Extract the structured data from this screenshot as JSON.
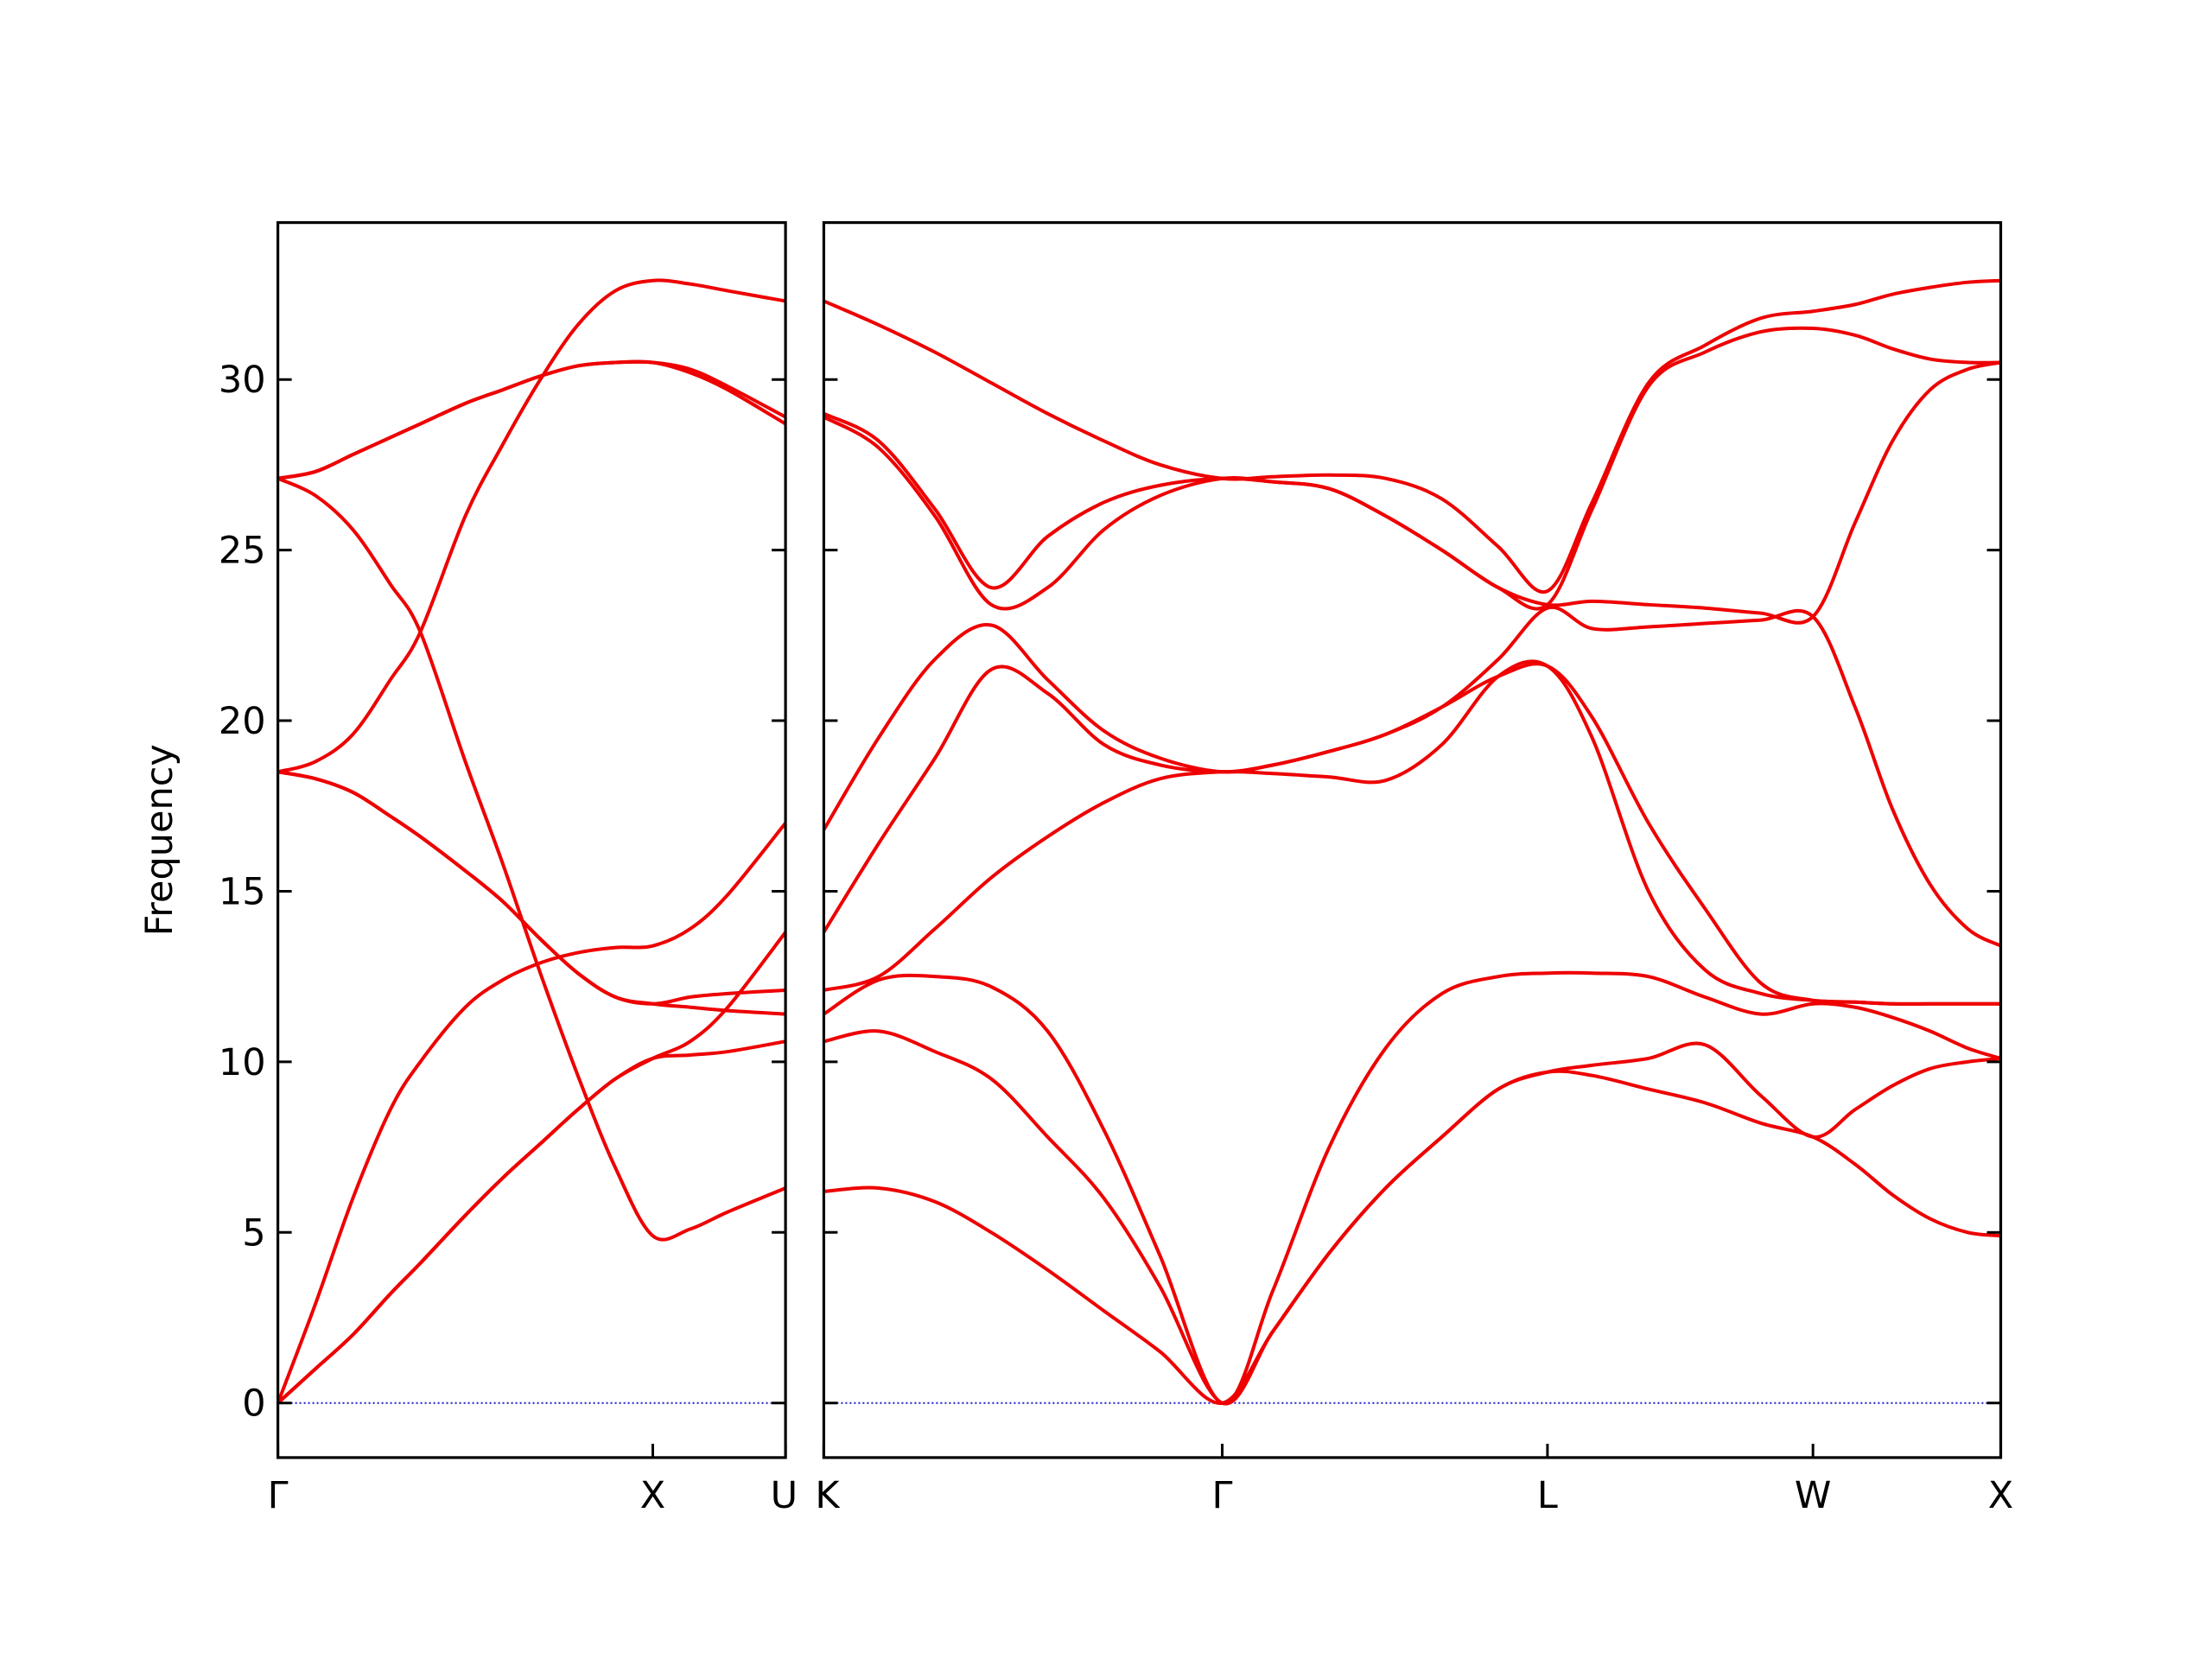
{
  "chart_data": [
    {
      "type": "line",
      "ylabel": "Frequency",
      "x": [
        0,
        0.1,
        0.2,
        0.3,
        0.38,
        0.5,
        0.6,
        0.7,
        0.8,
        0.9,
        1.0,
        1.1,
        1.2,
        1.354
      ],
      "series": [
        {
          "color": "#ee0000",
          "values": [
            0,
            1.0,
            2.0,
            3.2,
            4.1,
            5.5,
            6.6,
            7.6,
            8.6,
            9.5,
            10.1,
            10.2,
            10.3,
            10.6
          ]
        },
        {
          "color": "#ee0000",
          "values": [
            0,
            1.0,
            2.0,
            3.2,
            4.1,
            5.5,
            6.6,
            7.6,
            8.6,
            9.5,
            10.1,
            10.6,
            11.6,
            13.8
          ]
        },
        {
          "color": "#ee0000",
          "values": [
            0,
            2.9,
            6.0,
            8.6,
            10.0,
            11.6,
            12.4,
            12.9,
            13.2,
            13.35,
            13.4,
            13.9,
            14.9,
            17.0
          ]
        },
        {
          "color": "#ee0000",
          "values": [
            18.5,
            18.3,
            17.9,
            17.2,
            16.6,
            15.6,
            14.7,
            13.6,
            12.6,
            11.9,
            11.7,
            11.9,
            12.0,
            12.1
          ]
        },
        {
          "color": "#ee0000",
          "values": [
            18.5,
            18.3,
            17.9,
            17.2,
            16.6,
            15.6,
            14.7,
            13.6,
            12.6,
            11.9,
            11.7,
            11.6,
            11.5,
            11.4
          ]
        },
        {
          "color": "#ee0000",
          "values": [
            18.5,
            18.8,
            19.6,
            21.2,
            22.6,
            26.0,
            28.1,
            30.0,
            31.6,
            32.6,
            32.9,
            32.8,
            32.6,
            32.3
          ]
        },
        {
          "color": "#ee0000",
          "values": [
            27.1,
            27.3,
            27.8,
            28.3,
            28.7,
            29.3,
            29.7,
            30.1,
            30.4,
            30.5,
            30.5,
            30.3,
            29.8,
            28.9
          ]
        },
        {
          "color": "#ee0000",
          "values": [
            27.1,
            27.3,
            27.8,
            28.3,
            28.7,
            29.3,
            29.7,
            30.1,
            30.4,
            30.5,
            30.5,
            30.2,
            29.7,
            28.7
          ]
        },
        {
          "color": "#ee0000",
          "values": [
            27.1,
            26.6,
            25.6,
            24.0,
            22.6,
            18.8,
            15.8,
            12.6,
            9.6,
            6.9,
            4.9,
            5.1,
            5.6,
            6.3
          ]
        }
      ],
      "xlim": [
        0,
        1.354
      ],
      "xticks": [
        {
          "value": 0,
          "label": "Γ"
        },
        {
          "value": 1.0,
          "label": "X"
        },
        {
          "value": 1.354,
          "label": "U"
        }
      ],
      "ylim": [
        -1.6,
        34.6
      ],
      "yticks": [
        0,
        5,
        10,
        15,
        20,
        25,
        30
      ],
      "ytick_labels": true,
      "zero_line": {
        "value": 0,
        "color": "#1c1cc8"
      }
    },
    {
      "type": "line",
      "x": [
        1.354,
        1.5,
        1.65,
        1.8,
        1.95,
        2.1,
        2.25,
        2.415,
        2.55,
        2.7,
        2.85,
        3.0,
        3.15,
        3.281,
        3.4,
        3.55,
        3.7,
        3.85,
        3.988,
        4.1,
        4.2,
        4.3,
        4.4,
        4.488
      ],
      "series": [
        {
          "color": "#ee0000",
          "values": [
            6.2,
            6.3,
            5.9,
            5.0,
            3.9,
            2.7,
            1.5,
            0,
            2.1,
            4.4,
            6.3,
            7.8,
            9.2,
            9.7,
            9.6,
            9.2,
            8.8,
            8.2,
            7.8,
            7.0,
            6.1,
            5.4,
            5.0,
            4.9
          ]
        },
        {
          "color": "#ee0000",
          "values": [
            10.6,
            10.9,
            10.3,
            9.5,
            7.8,
            6.0,
            3.4,
            0,
            2.1,
            4.4,
            6.3,
            7.8,
            9.2,
            9.7,
            9.9,
            10.1,
            10.5,
            9.0,
            7.8,
            8.6,
            9.3,
            9.8,
            10.0,
            10.1
          ]
        },
        {
          "color": "#ee0000",
          "values": [
            11.4,
            12.4,
            12.5,
            12.2,
            10.9,
            8.0,
            4.3,
            0,
            3.3,
            7.5,
            10.4,
            12.0,
            12.5,
            12.6,
            12.6,
            12.5,
            11.9,
            11.4,
            11.7,
            11.6,
            11.3,
            10.9,
            10.4,
            10.1
          ]
        },
        {
          "color": "#ee0000",
          "values": [
            12.1,
            12.5,
            13.9,
            15.4,
            16.6,
            17.6,
            18.3,
            18.5,
            18.45,
            18.35,
            18.25,
            19.3,
            21.3,
            21.6,
            19.5,
            15.0,
            12.7,
            12.0,
            11.8,
            11.75,
            11.7,
            11.7,
            11.7,
            11.7
          ]
        },
        {
          "color": "#ee0000",
          "values": [
            13.8,
            16.4,
            18.9,
            21.5,
            20.8,
            19.3,
            18.7,
            18.5,
            18.7,
            19.1,
            19.6,
            20.4,
            21.3,
            21.6,
            20.1,
            17.0,
            14.5,
            12.3,
            11.8,
            11.75,
            11.7,
            11.7,
            11.7,
            11.7
          ]
        },
        {
          "color": "#ee0000",
          "values": [
            16.8,
            19.5,
            21.8,
            22.8,
            21.2,
            19.7,
            18.9,
            18.5,
            18.7,
            19.1,
            19.6,
            20.4,
            21.8,
            23.3,
            22.7,
            22.75,
            22.85,
            22.95,
            23.05,
            20.4,
            17.4,
            15.2,
            13.9,
            13.4
          ]
        },
        {
          "color": "#ee0000",
          "values": [
            28.9,
            28.0,
            26.0,
            23.4,
            23.9,
            25.6,
            26.6,
            27.1,
            27.0,
            26.8,
            26.0,
            25.0,
            23.9,
            23.4,
            23.5,
            23.4,
            23.3,
            23.15,
            23.05,
            25.8,
            28.2,
            29.7,
            30.3,
            30.5
          ]
        },
        {
          "color": "#ee0000",
          "values": [
            29.0,
            28.2,
            26.2,
            23.9,
            25.4,
            26.4,
            26.9,
            27.1,
            27.0,
            26.8,
            26.0,
            25.0,
            23.9,
            23.4,
            26.2,
            29.8,
            30.8,
            31.4,
            31.5,
            31.3,
            30.9,
            30.6,
            30.5,
            30.5
          ]
        },
        {
          "color": "#ee0000",
          "values": [
            32.3,
            31.6,
            30.8,
            29.9,
            29.0,
            28.2,
            27.5,
            27.1,
            27.15,
            27.2,
            27.1,
            26.5,
            25.1,
            23.8,
            26.4,
            29.9,
            31.0,
            31.8,
            32.0,
            32.2,
            32.5,
            32.7,
            32.85,
            32.9
          ]
        }
      ],
      "xlim": [
        1.354,
        4.488
      ],
      "xticks": [
        {
          "value": 1.354,
          "label": "K"
        },
        {
          "value": 2.415,
          "label": "Γ"
        },
        {
          "value": 3.281,
          "label": "L"
        },
        {
          "value": 3.988,
          "label": "W"
        },
        {
          "value": 4.488,
          "label": "X"
        }
      ],
      "ylim": [
        -1.6,
        34.6
      ],
      "yticks": [
        0,
        5,
        10,
        15,
        20,
        25,
        30
      ],
      "ytick_labels": false,
      "zero_line": {
        "value": 0,
        "color": "#1c1cc8"
      }
    }
  ]
}
